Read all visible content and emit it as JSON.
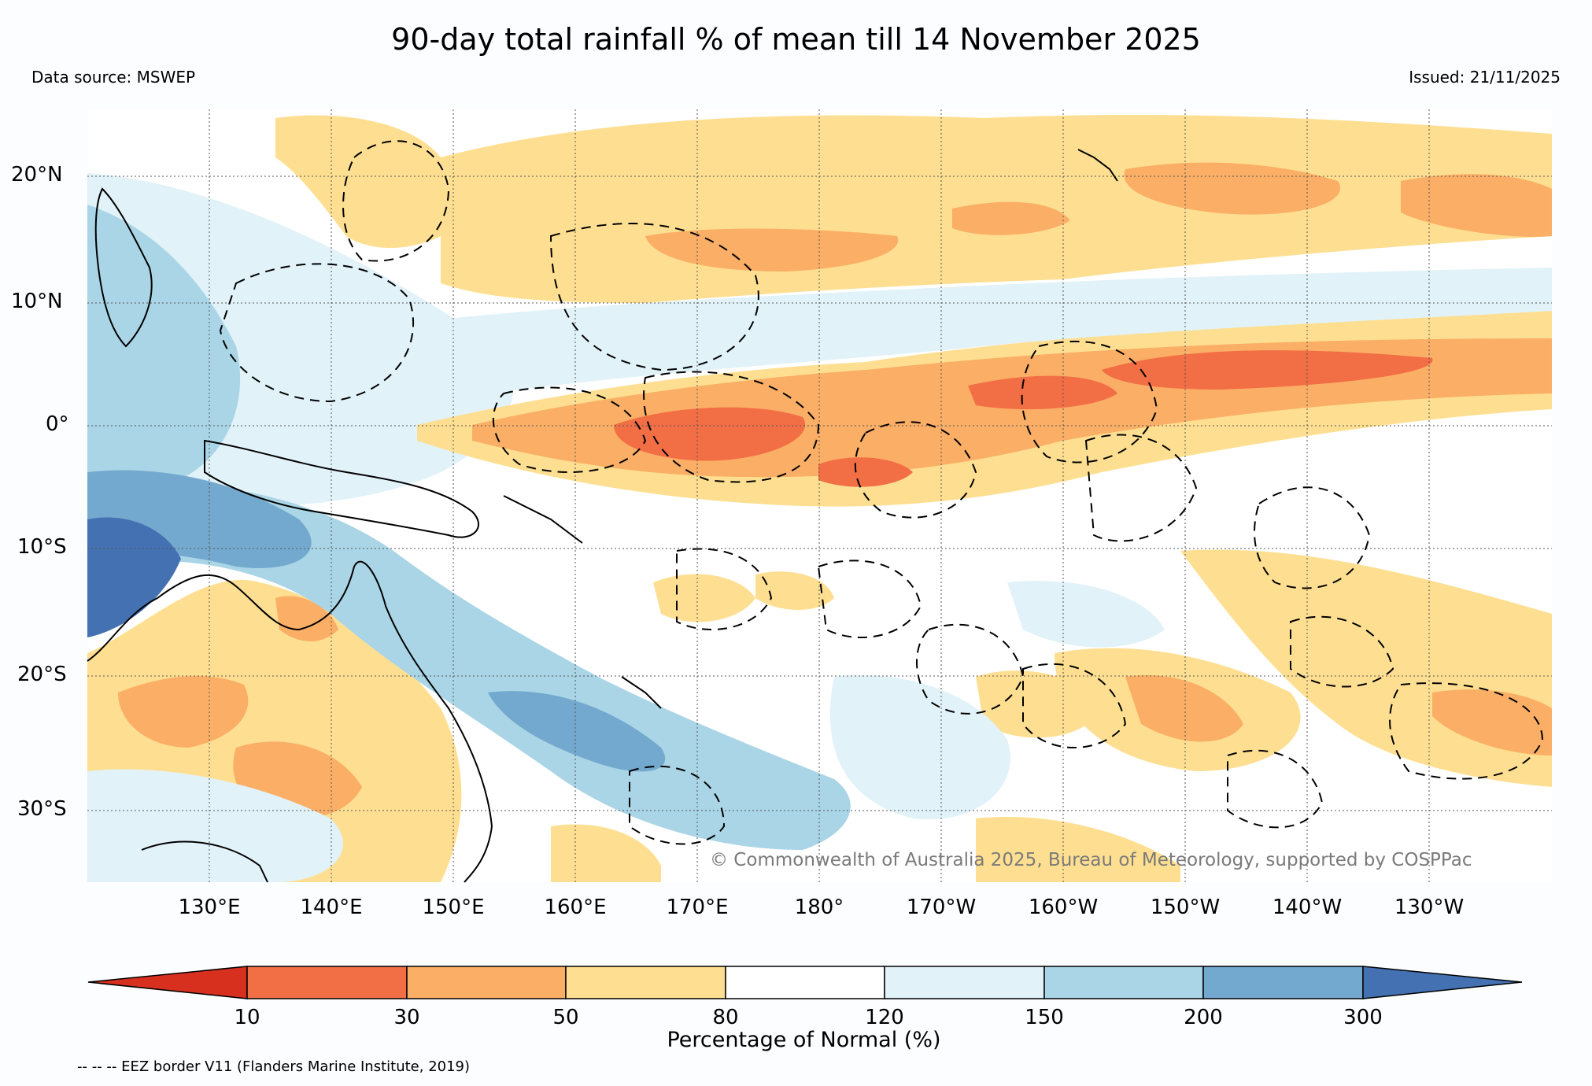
{
  "title": "90-day total rainfall % of mean till 14 November 2025",
  "data_source": "Data source: MSWEP",
  "issued": "Issued: 21/11/2025",
  "copyright": "© Commonwealth of Australia 2025, Bureau of Meteorology, supported by COSPPac",
  "eez_note": "-- -- -- EEZ border V11 (Flanders Marine Institute, 2019)",
  "map": {
    "lat_labels": [
      "20°N",
      "10°N",
      "0°",
      "10°S",
      "20°S",
      "30°S"
    ],
    "lon_labels": [
      "130°E",
      "140°E",
      "150°E",
      "160°E",
      "170°E",
      "180°",
      "170°W",
      "160°W",
      "150°W",
      "140°W",
      "130°W"
    ],
    "extent": {
      "lon_min": 120,
      "lon_max": 240,
      "lat_min": -35,
      "lat_max": 25
    }
  },
  "colorbar": {
    "label": "Percentage of Normal (%)",
    "ticks": [
      "10",
      "30",
      "50",
      "80",
      "120",
      "150",
      "200",
      "300"
    ],
    "colors": {
      "below_10": "#d7301f",
      "c10_30": "#f26e45",
      "c30_50": "#fbae65",
      "c50_80": "#fedf91",
      "c80_120": "#ffffff",
      "c120_150": "#e1f2f8",
      "c150_200": "#a9d5e6",
      "c200_300": "#74a9cf",
      "above_300": "#4471b2"
    }
  }
}
